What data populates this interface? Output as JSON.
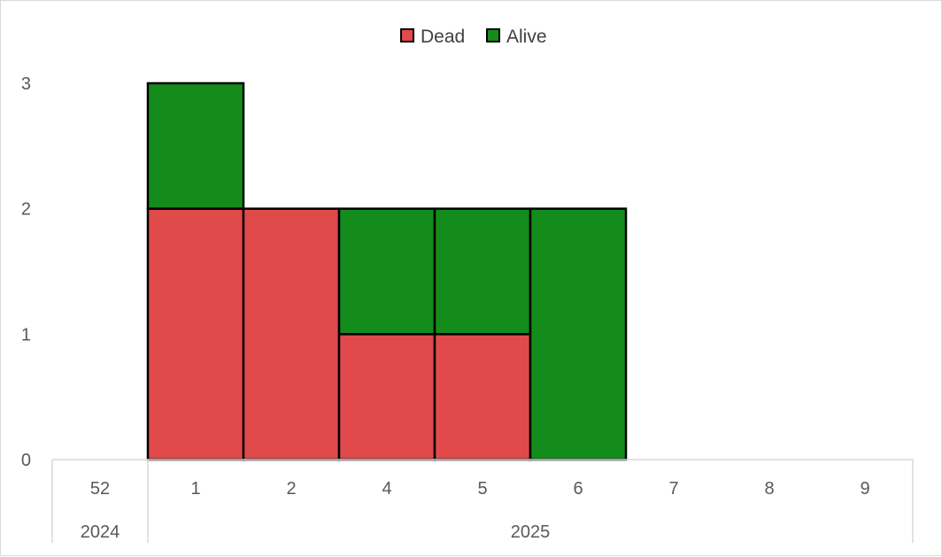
{
  "chart_data": {
    "type": "bar",
    "stacked": true,
    "categories": [
      "52",
      "1",
      "2",
      "4",
      "5",
      "6",
      "7",
      "8",
      "9"
    ],
    "category_groups": [
      {
        "label": "2024",
        "categories": [
          "52"
        ]
      },
      {
        "label": "2025",
        "categories": [
          "1",
          "2",
          "4",
          "5",
          "6",
          "7",
          "8",
          "9"
        ]
      }
    ],
    "series": [
      {
        "name": "Dead",
        "color": "#e04a4a",
        "values": [
          0,
          2,
          2,
          1,
          1,
          0,
          0,
          0,
          0
        ]
      },
      {
        "name": "Alive",
        "color": "#148c1c",
        "values": [
          0,
          1,
          0,
          1,
          1,
          2,
          0,
          0,
          0
        ]
      }
    ],
    "ylim": [
      0,
      3
    ],
    "yticks": [
      "0",
      "1",
      "2",
      "3"
    ],
    "grid": false,
    "legend_position": "top"
  }
}
